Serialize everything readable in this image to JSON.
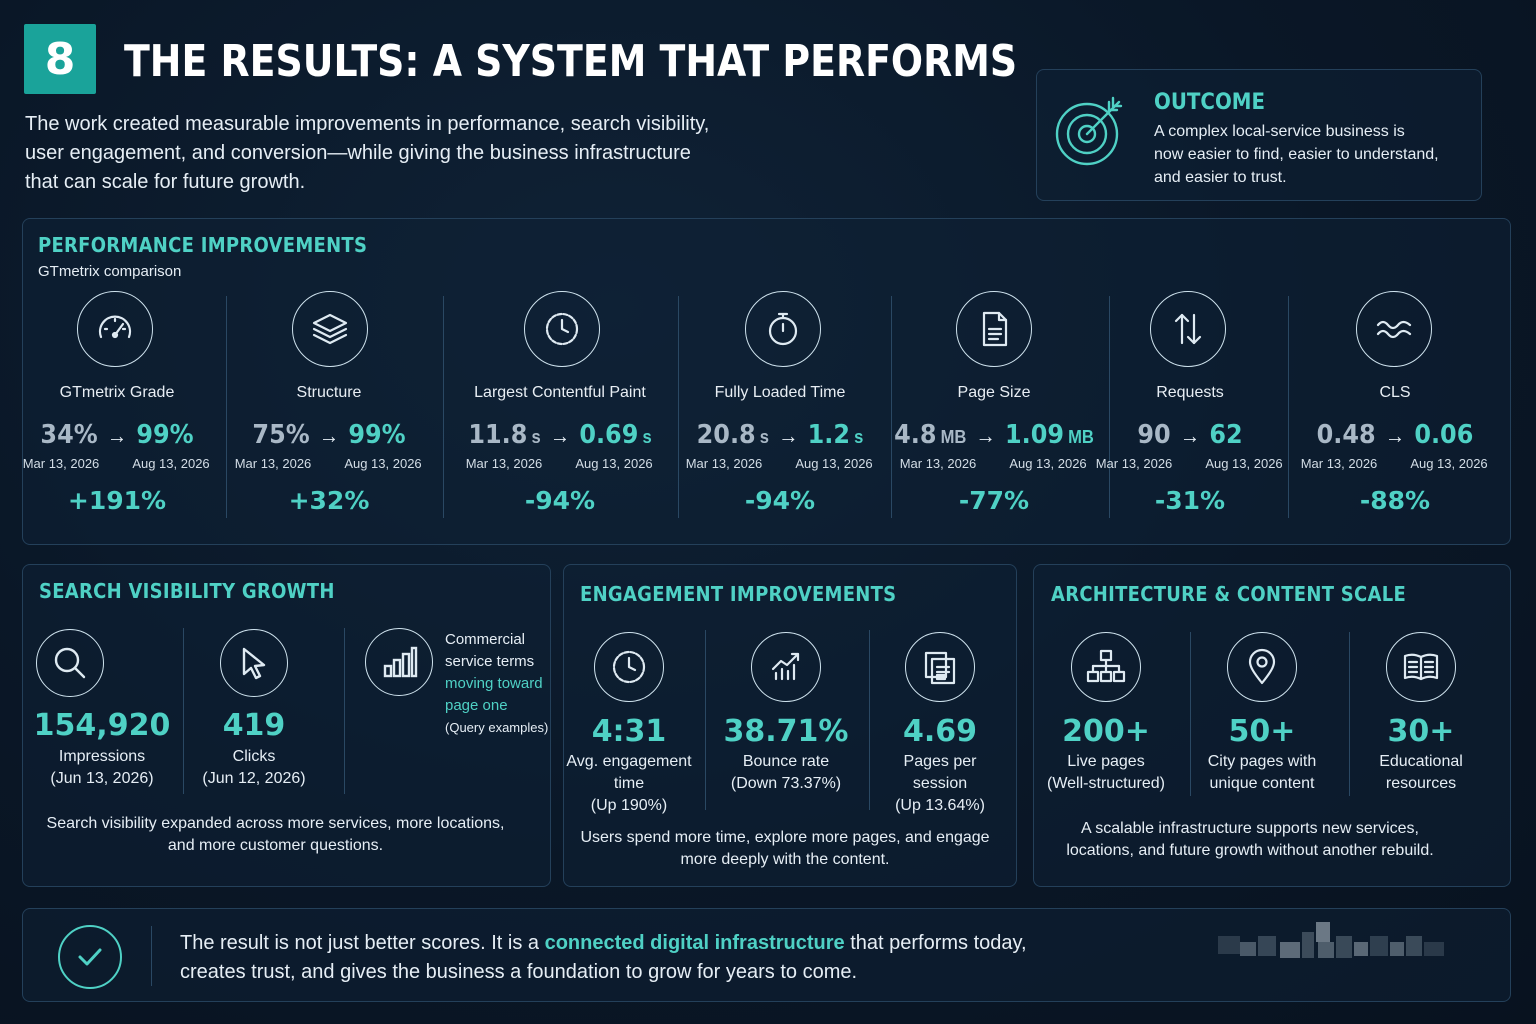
{
  "header": {
    "number": "8",
    "title": "THE RESULTS: A SYSTEM THAT PERFORMS",
    "intro_line1": "The work created measurable improvements in performance, search visibility,",
    "intro_line2": "user engagement, and conversion—while giving the business infrastructure",
    "intro_line3": "that can scale for future growth."
  },
  "outcome": {
    "title": "OUTCOME",
    "line1": "A complex local-service business is",
    "line2": "now easier to find, easier to understand,",
    "line3": "and easier to trust.",
    "icon": "target-icon"
  },
  "performance": {
    "title": "PERFORMANCE IMPROVEMENTS",
    "subtitle": "GTmetrix comparison",
    "metrics": [
      {
        "label": "GTmetrix Grade",
        "before": "34%",
        "after": "99%",
        "before_unit": "",
        "after_unit": "",
        "date_before": "Mar 13, 2026",
        "date_after": "Aug 13, 2026",
        "delta": "+191%",
        "icon": "speedometer-icon"
      },
      {
        "label": "Structure",
        "before": "75%",
        "after": "99%",
        "before_unit": "",
        "after_unit": "",
        "date_before": "Mar 13, 2026",
        "date_after": "Aug 13, 2026",
        "delta": "+32%",
        "icon": "layers-icon"
      },
      {
        "label": "Largest Contentful Paint",
        "before": "11.8",
        "after": "0.69",
        "before_unit": "s",
        "after_unit": "s",
        "date_before": "Mar 13, 2026",
        "date_after": "Aug 13, 2026",
        "delta": "-94%",
        "icon": "clock-icon"
      },
      {
        "label": "Fully Loaded Time",
        "before": "20.8",
        "after": "1.2",
        "before_unit": "s",
        "after_unit": "s",
        "date_before": "Mar 13, 2026",
        "date_after": "Aug 13, 2026",
        "delta": "-94%",
        "icon": "stopwatch-icon"
      },
      {
        "label": "Page Size",
        "before": "4.8",
        "after": "1.09",
        "before_unit": "MB",
        "after_unit": "MB",
        "date_before": "Mar 13, 2026",
        "date_after": "Aug 13, 2026",
        "delta": "-77%",
        "icon": "document-icon"
      },
      {
        "label": "Requests",
        "before": "90",
        "after": "62",
        "before_unit": "",
        "after_unit": "",
        "date_before": "Mar 13, 2026",
        "date_after": "Aug 13, 2026",
        "delta": "-31%",
        "icon": "transfer-arrows-icon"
      },
      {
        "label": "CLS",
        "before": "0.48",
        "after": "0.06",
        "before_unit": "",
        "after_unit": "",
        "date_before": "Mar 13, 2026",
        "date_after": "Aug 13, 2026",
        "delta": "-88%",
        "icon": "wave-icon"
      }
    ]
  },
  "search": {
    "title": "SEARCH VISIBILITY GROWTH",
    "impressions_value": "154,920",
    "impressions_label": "Impressions",
    "impressions_date": "(Jun 13, 2026)",
    "clicks_value": "419",
    "clicks_label": "Clicks",
    "clicks_date": "(Jun 12, 2026)",
    "commercial_line1": "Commercial",
    "commercial_line2": "service terms",
    "commercial_line3": "moving toward",
    "commercial_line4": "page one",
    "commercial_note": "(Query examples)",
    "caption_line1": "Search visibility expanded across more services, more locations,",
    "caption_line2": "and more customer questions."
  },
  "engagement": {
    "title": "ENGAGEMENT IMPROVEMENTS",
    "stats": [
      {
        "value": "4:31",
        "line1": "Avg. engagement",
        "line2": "time",
        "line3": "(Up 190%)",
        "icon": "clock-icon"
      },
      {
        "value": "38.71%",
        "line1": "Bounce rate",
        "line2": "(Down 73.37%)",
        "line3": "",
        "icon": "trend-chart-icon"
      },
      {
        "value": "4.69",
        "line1": "Pages per",
        "line2": "session",
        "line3": "(Up 13.64%)",
        "icon": "pages-icon"
      }
    ],
    "caption_line1": "Users spend more time, explore more pages, and engage",
    "caption_line2": "more deeply with the content."
  },
  "architecture": {
    "title": "ARCHITECTURE & CONTENT SCALE",
    "stats": [
      {
        "value": "200+",
        "line1": "Live pages",
        "line2": "(Well-structured)",
        "icon": "sitemap-icon"
      },
      {
        "value": "50+",
        "line1": "City pages with",
        "line2": "unique content",
        "icon": "location-pin-icon"
      },
      {
        "value": "30+",
        "line1": "Educational",
        "line2": "resources",
        "icon": "book-icon"
      }
    ],
    "caption_line1": "A scalable infrastructure supports new services,",
    "caption_line2": "locations, and future growth without another rebuild."
  },
  "footer": {
    "text_before": "The result is not just better scores. It is a ",
    "text_highlight": "connected digital infrastructure",
    "text_after": " that performs today,",
    "line2": "creates trust, and gives the business a foundation to grow for years to come."
  },
  "colors": {
    "accent": "#4fd1c5",
    "background": "#0a1727",
    "panel_border": "#24405a"
  }
}
